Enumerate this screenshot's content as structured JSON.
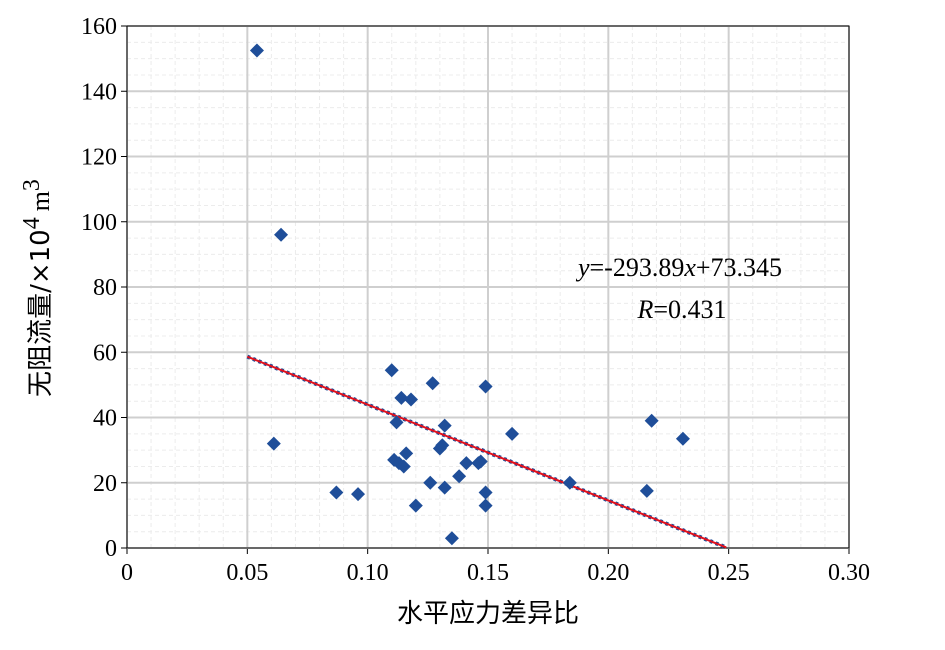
{
  "chart_data": {
    "type": "scatter",
    "xlabel": "水平应力差异比",
    "ylabel": "无阻流量/×10",
    "ylabel_superscript": "4",
    "ylabel_unit": "m",
    "ylabel_unit_superscript": "3",
    "xlim": [
      0,
      0.3
    ],
    "ylim": [
      0,
      160
    ],
    "x_ticks": [
      "0",
      "0.05",
      "0.10",
      "0.15",
      "0.20",
      "0.25",
      "0.30"
    ],
    "y_ticks": [
      "0",
      "20",
      "40",
      "60",
      "80",
      "100",
      "120",
      "140",
      "160"
    ],
    "grid": true,
    "marker_color": "#1f4e99",
    "trendline_color": "#e0101c",
    "points": [
      {
        "x": 0.054,
        "y": 152.5
      },
      {
        "x": 0.064,
        "y": 96
      },
      {
        "x": 0.061,
        "y": 32
      },
      {
        "x": 0.087,
        "y": 17
      },
      {
        "x": 0.096,
        "y": 16.5
      },
      {
        "x": 0.11,
        "y": 54.5
      },
      {
        "x": 0.111,
        "y": 27
      },
      {
        "x": 0.112,
        "y": 38.5
      },
      {
        "x": 0.113,
        "y": 26
      },
      {
        "x": 0.115,
        "y": 25
      },
      {
        "x": 0.114,
        "y": 46
      },
      {
        "x": 0.116,
        "y": 29
      },
      {
        "x": 0.118,
        "y": 45.5
      },
      {
        "x": 0.12,
        "y": 13
      },
      {
        "x": 0.126,
        "y": 20
      },
      {
        "x": 0.127,
        "y": 50.5
      },
      {
        "x": 0.13,
        "y": 30.5
      },
      {
        "x": 0.131,
        "y": 31.5
      },
      {
        "x": 0.132,
        "y": 37.5
      },
      {
        "x": 0.132,
        "y": 18.5
      },
      {
        "x": 0.135,
        "y": 3
      },
      {
        "x": 0.138,
        "y": 22
      },
      {
        "x": 0.141,
        "y": 26
      },
      {
        "x": 0.146,
        "y": 26
      },
      {
        "x": 0.147,
        "y": 26.5
      },
      {
        "x": 0.149,
        "y": 49.5
      },
      {
        "x": 0.149,
        "y": 17
      },
      {
        "x": 0.149,
        "y": 13
      },
      {
        "x": 0.16,
        "y": 35
      },
      {
        "x": 0.184,
        "y": 20
      },
      {
        "x": 0.216,
        "y": 17.5
      },
      {
        "x": 0.218,
        "y": 39
      },
      {
        "x": 0.231,
        "y": 33.5
      }
    ],
    "trendline": {
      "x_start": 0.05,
      "x_end": 0.249,
      "slope": -293.89,
      "intercept": 73.345
    },
    "annotation": {
      "equation_y": "y",
      "equation_mid": "=-293.89",
      "equation_x": "x",
      "equation_end": "+73.345",
      "r_label": "R",
      "r_value": "=0.431"
    }
  }
}
